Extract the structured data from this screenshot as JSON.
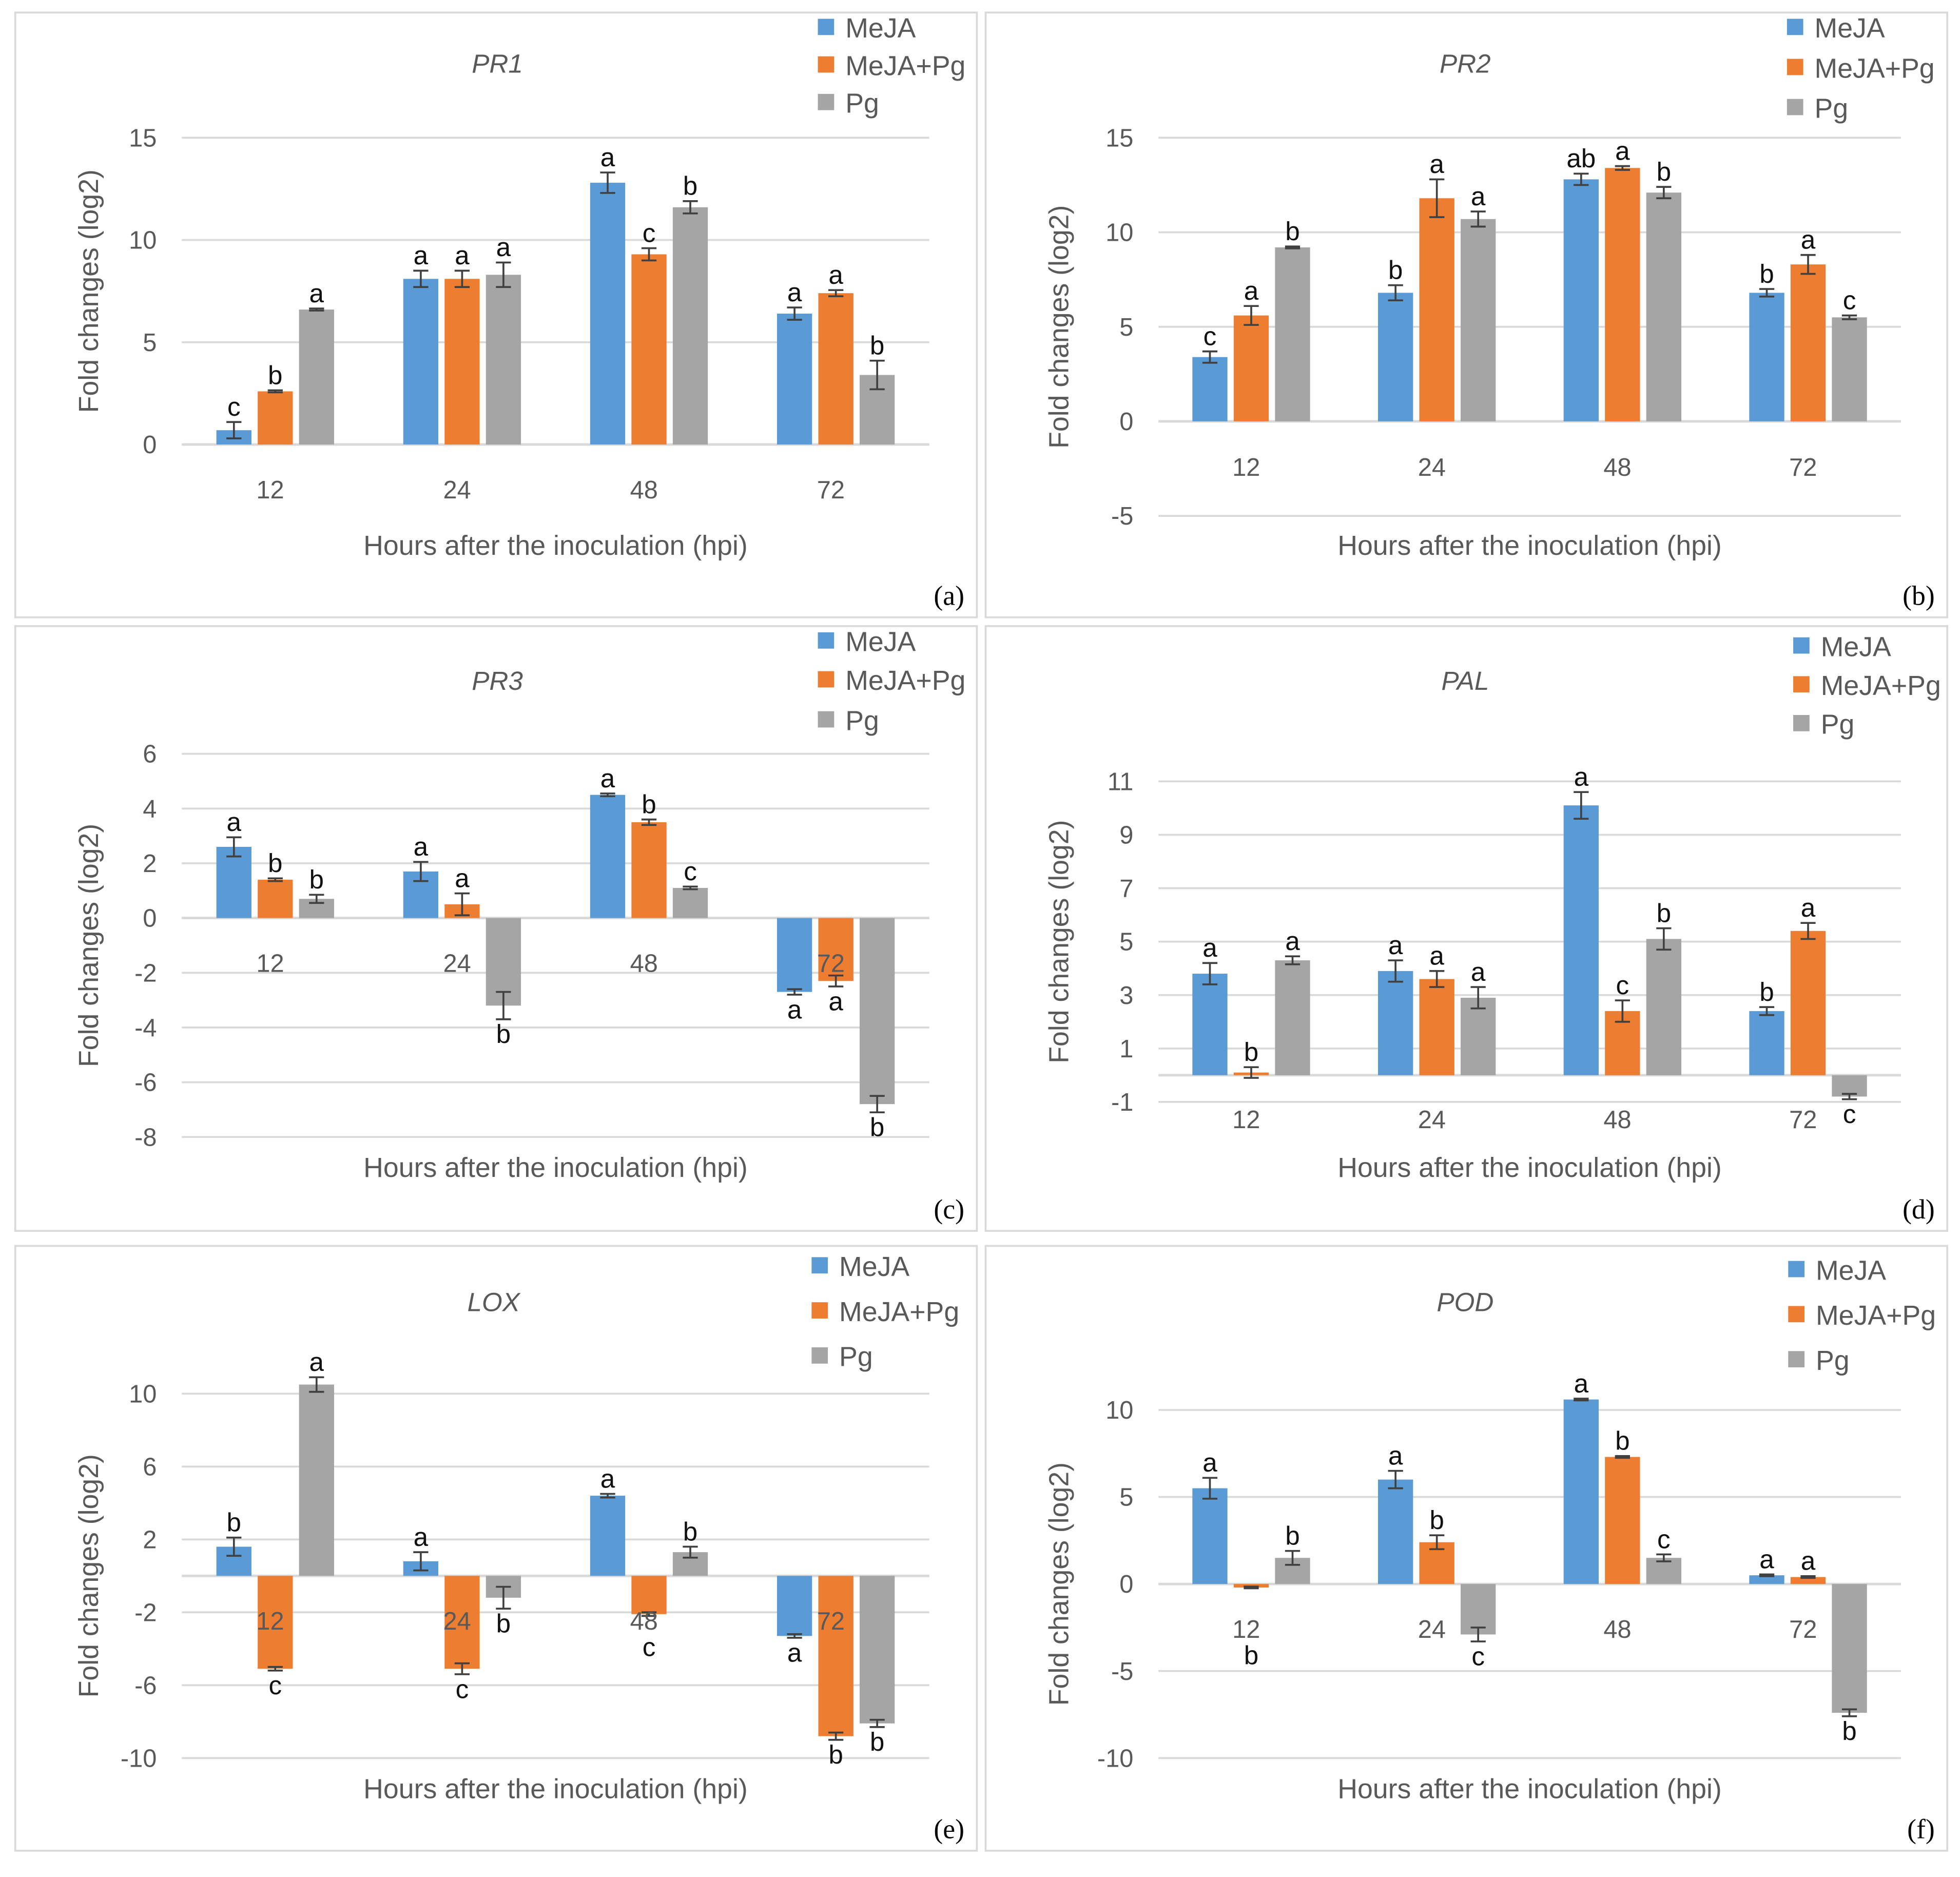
{
  "colors": {
    "MeJA": "#5B9BD5",
    "MeJA+Pg": "#ED7D31",
    "Pg": "#A5A5A5",
    "grid": "#D9D9D9",
    "text": "#595959"
  },
  "chart_data": [
    {
      "type": "bar",
      "panel_label": "(a)",
      "title": "PR1",
      "ylabel": "Fold changes (log2)",
      "xlabel": "Hours after the inoculation (hpi)",
      "categories": [
        "12",
        "24",
        "48",
        "72"
      ],
      "ylim": [
        0,
        15
      ],
      "yticks": [
        0,
        5,
        10,
        15
      ],
      "legend": "top-right",
      "grid": true,
      "series": [
        {
          "name": "MeJA",
          "values": [
            0.7,
            8.1,
            12.8,
            6.4
          ],
          "errors": [
            0.4,
            0.4,
            0.5,
            0.3
          ],
          "letters": [
            "c",
            "a",
            "a",
            "a"
          ]
        },
        {
          "name": "MeJA+Pg",
          "values": [
            2.6,
            8.1,
            9.3,
            7.4
          ],
          "errors": [
            0.05,
            0.4,
            0.3,
            0.15
          ],
          "letters": [
            "b",
            "a",
            "c",
            "a"
          ]
        },
        {
          "name": "Pg",
          "values": [
            6.6,
            8.3,
            11.6,
            3.4
          ],
          "errors": [
            0.05,
            0.6,
            0.3,
            0.7
          ],
          "letters": [
            "a",
            "a",
            "b",
            "b"
          ]
        }
      ]
    },
    {
      "type": "bar",
      "panel_label": "(b)",
      "title": "PR2",
      "ylabel": "Fold changes (log2)",
      "xlabel": "Hours after the inoculation (hpi)",
      "categories": [
        "12",
        "24",
        "48",
        "72"
      ],
      "ylim": [
        -5,
        15
      ],
      "yticks": [
        -5,
        0,
        5,
        10,
        15
      ],
      "legend": "top-right",
      "grid": true,
      "series": [
        {
          "name": "MeJA",
          "values": [
            3.4,
            6.8,
            12.8,
            6.8
          ],
          "errors": [
            0.3,
            0.4,
            0.3,
            0.2
          ],
          "letters": [
            "c",
            "b",
            "ab",
            "b"
          ]
        },
        {
          "name": "MeJA+Pg",
          "values": [
            5.6,
            11.8,
            13.4,
            8.3
          ],
          "errors": [
            0.5,
            1.0,
            0.1,
            0.5
          ],
          "letters": [
            "a",
            "a",
            "a",
            "a"
          ]
        },
        {
          "name": "Pg",
          "values": [
            9.2,
            10.7,
            12.1,
            5.5
          ],
          "errors": [
            0.05,
            0.4,
            0.3,
            0.1
          ],
          "letters": [
            "b",
            "a",
            "b",
            "c"
          ]
        }
      ]
    },
    {
      "type": "bar",
      "panel_label": "(c)",
      "title": "PR3",
      "ylabel": "Fold changes (log2)",
      "xlabel": "Hours after the inoculation (hpi)",
      "categories": [
        "12",
        "24",
        "48",
        "72"
      ],
      "ylim": [
        -8,
        6
      ],
      "yticks": [
        -8,
        -6,
        -4,
        -2,
        0,
        2,
        4,
        6
      ],
      "legend": "top-right",
      "grid": true,
      "series": [
        {
          "name": "MeJA",
          "values": [
            2.6,
            1.7,
            4.5,
            -2.7
          ],
          "errors": [
            0.35,
            0.35,
            0.05,
            0.1
          ],
          "letters": [
            "a",
            "a",
            "a",
            "a"
          ]
        },
        {
          "name": "MeJA+Pg",
          "values": [
            1.4,
            0.5,
            3.5,
            -2.3
          ],
          "errors": [
            0.05,
            0.4,
            0.1,
            0.2
          ],
          "letters": [
            "b",
            "a",
            "b",
            "a"
          ]
        },
        {
          "name": "Pg",
          "values": [
            0.7,
            -3.2,
            1.1,
            -6.8
          ],
          "errors": [
            0.15,
            0.5,
            0.05,
            0.3
          ],
          "letters": [
            "b",
            "b",
            "c",
            "b"
          ]
        }
      ]
    },
    {
      "type": "bar",
      "panel_label": "(d)",
      "title": "PAL",
      "ylabel": "Fold changes (log2)",
      "xlabel": "Hours after the inoculation (hpi)",
      "categories": [
        "12",
        "24",
        "48",
        "72"
      ],
      "ylim": [
        -1,
        11
      ],
      "yticks": [
        -1,
        1,
        3,
        5,
        7,
        9,
        11
      ],
      "legend": "top-right",
      "grid": true,
      "series": [
        {
          "name": "MeJA",
          "values": [
            3.8,
            3.9,
            10.1,
            2.4
          ],
          "errors": [
            0.4,
            0.4,
            0.5,
            0.15
          ],
          "letters": [
            "a",
            "a",
            "a",
            "b"
          ]
        },
        {
          "name": "MeJA+Pg",
          "values": [
            0.1,
            3.6,
            2.4,
            5.4
          ],
          "errors": [
            0.2,
            0.3,
            0.4,
            0.3
          ],
          "letters": [
            "b",
            "a",
            "c",
            "a"
          ]
        },
        {
          "name": "Pg",
          "values": [
            4.3,
            2.9,
            5.1,
            -0.8
          ],
          "errors": [
            0.15,
            0.4,
            0.4,
            0.1
          ],
          "letters": [
            "a",
            "a",
            "b",
            "c"
          ]
        }
      ]
    },
    {
      "type": "bar",
      "panel_label": "(e)",
      "title": "LOX",
      "ylabel": "Fold changes (log2)",
      "xlabel": "Hours after the inoculation (hpi)",
      "categories": [
        "12",
        "24",
        "48",
        "72"
      ],
      "ylim": [
        -10,
        10
      ],
      "yticks": [
        -10,
        -6,
        -2,
        2,
        6,
        10
      ],
      "legend": "top-right",
      "grid": true,
      "series": [
        {
          "name": "MeJA",
          "values": [
            1.6,
            0.8,
            4.4,
            -3.3
          ],
          "errors": [
            0.5,
            0.5,
            0.1,
            0.1
          ],
          "letters": [
            "b",
            "a",
            "a",
            "a"
          ]
        },
        {
          "name": "MeJA+Pg",
          "values": [
            -5.1,
            -5.1,
            -2.1,
            -8.8
          ],
          "errors": [
            0.1,
            0.3,
            0.1,
            0.2
          ],
          "letters": [
            "c",
            "c",
            "c",
            "b"
          ]
        },
        {
          "name": "Pg",
          "values": [
            10.5,
            -1.2,
            1.3,
            -8.1
          ],
          "errors": [
            0.4,
            0.6,
            0.3,
            0.2
          ],
          "letters": [
            "a",
            "b",
            "b",
            "b"
          ]
        }
      ]
    },
    {
      "type": "bar",
      "panel_label": "(f)",
      "title": "POD",
      "ylabel": "Fold changes (log2)",
      "xlabel": "Hours after the inoculation (hpi)",
      "categories": [
        "12",
        "24",
        "48",
        "72"
      ],
      "ylim": [
        -10,
        10
      ],
      "yticks": [
        -10,
        -5,
        0,
        5,
        10
      ],
      "legend": "top-right",
      "grid": true,
      "series": [
        {
          "name": "MeJA",
          "values": [
            5.5,
            6.0,
            10.6,
            0.5
          ],
          "errors": [
            0.6,
            0.5,
            0.05,
            0.05
          ],
          "letters": [
            "a",
            "a",
            "a",
            "a"
          ]
        },
        {
          "name": "MeJA+Pg",
          "values": [
            -0.2,
            2.4,
            7.3,
            0.4
          ],
          "errors": [
            0.05,
            0.4,
            0.05,
            0.05
          ],
          "letters": [
            "b",
            "b",
            "b",
            "a"
          ]
        },
        {
          "name": "Pg",
          "values": [
            1.5,
            -2.9,
            1.5,
            -7.4
          ],
          "errors": [
            0.4,
            0.4,
            0.2,
            0.2
          ],
          "letters": [
            "b",
            "c",
            "c",
            "b"
          ]
        }
      ]
    }
  ]
}
